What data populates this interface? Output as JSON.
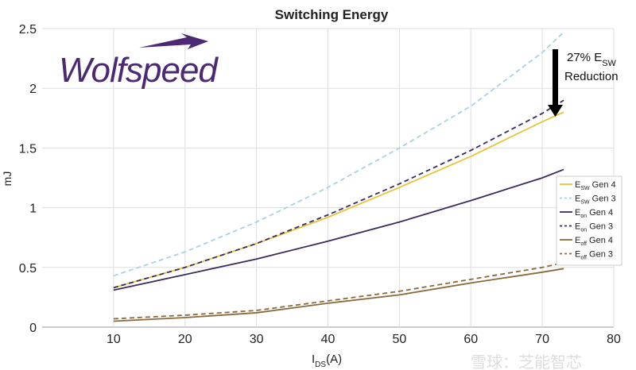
{
  "chart_data": {
    "type": "line",
    "title": "Switching Energy",
    "xlabel": "I_DS(A)",
    "xlabel_main": "I",
    "xlabel_sub": "DS",
    "xlabel_unit": "(A)",
    "ylabel": "mJ",
    "xlim": [
      0,
      80
    ],
    "ylim": [
      0,
      2.5
    ],
    "xticks": [
      "10",
      "20",
      "30",
      "40",
      "50",
      "60",
      "70",
      "80"
    ],
    "yticks": [
      "0",
      "0.5",
      "1",
      "1.5",
      "2",
      "2.5"
    ],
    "grid": true,
    "legend_position": "right",
    "x": [
      10,
      20,
      30,
      40,
      50,
      60,
      70,
      73
    ],
    "series": [
      {
        "name": "E_SW Gen 4",
        "label": "E",
        "sub": "SW",
        "suffix": " Gen 4",
        "color": "#e8c43a",
        "dash": false,
        "values": [
          0.33,
          0.5,
          0.7,
          0.92,
          1.17,
          1.43,
          1.72,
          1.8
        ]
      },
      {
        "name": "E_SW Gen 3",
        "label": "E",
        "sub": "SW",
        "suffix": " Gen 3",
        "color": "#a9d3df",
        "dash": true,
        "values": [
          0.43,
          0.63,
          0.88,
          1.17,
          1.5,
          1.85,
          2.3,
          2.47
        ]
      },
      {
        "name": "E_on Gen 4",
        "label": "E",
        "sub": "on",
        "suffix": " Gen 4",
        "color": "#3b2a5e",
        "dash": false,
        "values": [
          0.31,
          0.44,
          0.57,
          0.72,
          0.88,
          1.06,
          1.25,
          1.32
        ]
      },
      {
        "name": "E_on Gen 3",
        "label": "E",
        "sub": "on",
        "suffix": " Gen 3",
        "color": "#3b2a5e",
        "dash": true,
        "values": [
          0.33,
          0.5,
          0.7,
          0.94,
          1.2,
          1.48,
          1.79,
          1.9
        ]
      },
      {
        "name": "E_off Gen 4",
        "label": "E",
        "sub": "off",
        "suffix": " Gen 4",
        "color": "#8a6a3a",
        "dash": false,
        "values": [
          0.05,
          0.08,
          0.12,
          0.2,
          0.27,
          0.37,
          0.46,
          0.49
        ]
      },
      {
        "name": "E_off Gen 3",
        "label": "E",
        "sub": "off",
        "suffix": " Gen 3",
        "color": "#8a6a3a",
        "dash": true,
        "values": [
          0.07,
          0.1,
          0.14,
          0.22,
          0.3,
          0.4,
          0.5,
          0.54
        ]
      }
    ],
    "annotation": {
      "line1": "27% E",
      "line1_sub": "SW",
      "line2": "Reduction"
    }
  },
  "logo": {
    "text": "Wolfspeed",
    "color": "#4b2a73"
  },
  "watermark": "雪球：芝能智芯"
}
